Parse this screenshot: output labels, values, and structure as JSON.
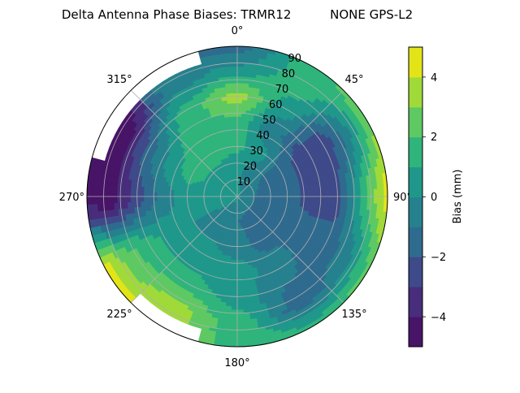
{
  "chart_data": {
    "type": "heatmap",
    "subtype": "polar-filled-contour",
    "title": "Delta Antenna Phase Biases: TRMR12          NONE GPS-L2",
    "theta_tick_labels": [
      "0°",
      "45°",
      "90°",
      "135°",
      "180°",
      "225°",
      "270°",
      "315°"
    ],
    "r_tick_labels": [
      "10",
      "20",
      "30",
      "40",
      "50",
      "60",
      "70",
      "80",
      "90"
    ],
    "r_range": [
      0,
      90
    ],
    "theta_direction": "clockwise",
    "theta_zero": "top",
    "grid": true,
    "colorbar": {
      "label": "Bias (mm)",
      "range": [
        -5,
        5
      ],
      "levels": [
        -5,
        -4,
        -3,
        -2,
        -1,
        0,
        1,
        2,
        3,
        4,
        5
      ],
      "ticks": [
        "4",
        "2",
        "0",
        "−2",
        "−4"
      ],
      "tick_values": [
        4,
        2,
        0,
        -2,
        -4
      ],
      "colormap": "viridis",
      "colors": [
        "#481467",
        "#472d7b",
        "#3e4a89",
        "#2f6b8e",
        "#26818e",
        "#1f988b",
        "#2fb47c",
        "#5ec962",
        "#a0da39",
        "#e3e418"
      ]
    },
    "azimuth_deg": [
      0,
      30,
      60,
      90,
      120,
      150,
      180,
      210,
      240,
      270,
      300,
      330
    ],
    "zenith_deg": [
      0,
      15,
      30,
      45,
      60,
      75,
      90
    ],
    "bias_mm": [
      [
        0.2,
        0.3,
        1.2,
        1.5,
        3.5,
        0.5,
        -1.5
      ],
      [
        0.2,
        -0.5,
        0.3,
        -0.8,
        0.5,
        1.5,
        1.5
      ],
      [
        0.2,
        -1.0,
        -1.5,
        -2.5,
        -2.8,
        -0.5,
        3.0
      ],
      [
        0.2,
        -1.5,
        -1.5,
        -2.5,
        -2.5,
        1.5,
        4.5
      ],
      [
        0.2,
        -1.5,
        -1.5,
        -1.5,
        -1.5,
        -0.5,
        2.5
      ],
      [
        0.2,
        -1.5,
        -1.5,
        -0.5,
        -1.0,
        -1.5,
        1.5
      ],
      [
        0.2,
        -1.0,
        -0.5,
        0.5,
        0.5,
        1.5,
        2.0
      ],
      [
        0.2,
        -0.5,
        0.0,
        0.5,
        1.5,
        3.5,
        null
      ],
      [
        0.2,
        0.0,
        0.0,
        0.5,
        1.5,
        2.5,
        4.5
      ],
      [
        0.2,
        0.5,
        0.5,
        -0.5,
        -2.5,
        -4.5,
        -4.5
      ],
      [
        0.2,
        0.5,
        1.5,
        0.5,
        -1.5,
        -4.5,
        null
      ],
      [
        0.2,
        0.5,
        1.5,
        2.0,
        1.5,
        -0.5,
        null
      ]
    ]
  }
}
